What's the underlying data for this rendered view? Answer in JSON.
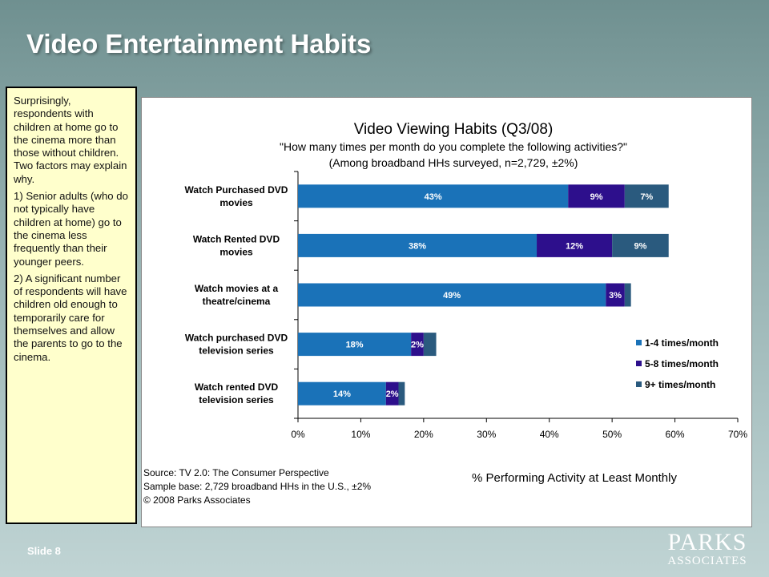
{
  "slide": {
    "title": "Video Entertainment Habits",
    "footer": "Slide 8",
    "logo_line1": "PARKS",
    "logo_line2": "ASSOCIATES"
  },
  "note": {
    "paragraphs": [
      "Surprisingly, respondents with children at home go to the cinema more than those without children. Two factors may explain why.",
      "1) Senior adults (who do not typically have children at home) go to the cinema less frequently than their younger peers.",
      "2) A significant number of respondents will have children old enough to temporarily care for themselves and allow the parents to go to the cinema."
    ]
  },
  "source": {
    "line1": "Source:  TV 2.0: The Consumer Perspective",
    "line2": "Sample base: 2,729 broadband HHs in the U.S., ±2%",
    "line3": "© 2008 Parks Associates"
  },
  "chart_data": {
    "type": "bar",
    "orientation": "horizontal",
    "stacked": true,
    "title": "Video Viewing Habits (Q3/08)",
    "subtitle_lines": [
      "\"How many times per month do you complete the following activities?\"",
      "(Among broadband HHs surveyed, n=2,729, ±2%)"
    ],
    "xlabel": "% Performing Activity at Least Monthly",
    "ylabel": "",
    "xlim": [
      0,
      70
    ],
    "xticks": [
      "0%",
      "10%",
      "20%",
      "30%",
      "40%",
      "50%",
      "60%",
      "70%"
    ],
    "categories": [
      "Watch Purchased DVD movies",
      "Watch Rented DVD movies",
      "Watch movies at a theatre/cinema",
      "Watch purchased DVD television series",
      "Watch rented DVD television series"
    ],
    "series": [
      {
        "name": "1-4 times/month",
        "color": "#1a72b8",
        "values": [
          43,
          38,
          49,
          18,
          14
        ],
        "labels": [
          "43%",
          "38%",
          "49%",
          "18%",
          "14%"
        ]
      },
      {
        "name": "5-8 times/month",
        "color": "#2d0f8c",
        "values": [
          9,
          12,
          3,
          2,
          2
        ],
        "labels": [
          "9%",
          "12%",
          "3%",
          "2%",
          "2%"
        ]
      },
      {
        "name": "9+ times/month",
        "color": "#2a5a7e",
        "values": [
          7,
          9,
          1,
          2,
          1
        ],
        "labels": [
          "7%",
          "9%",
          "",
          "",
          ""
        ]
      }
    ],
    "legend_position": "right",
    "grid": false
  }
}
